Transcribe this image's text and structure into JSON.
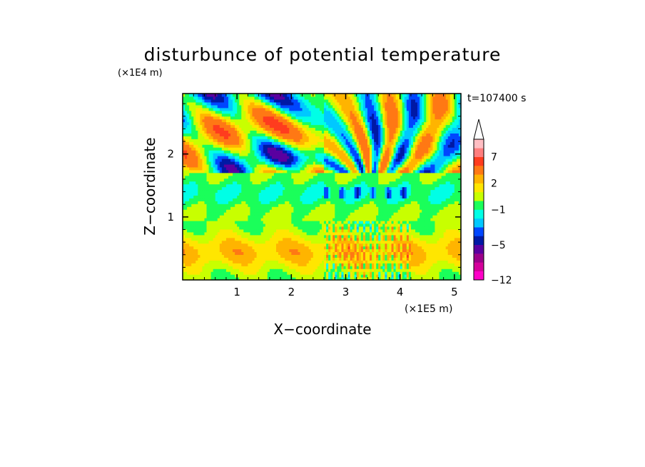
{
  "chart_data": {
    "type": "heatmap",
    "title": "disturbunce of potential temperature",
    "xlabel": "X−coordinate",
    "ylabel": "Z−coordinate",
    "x_unit": "(×1E5 m)",
    "y_unit": "(×1E4 m)",
    "time_label": "t=107400 s",
    "xlim": [
      0,
      5.12
    ],
    "ylim": [
      0,
      2.96
    ],
    "x_ticks": [
      "1",
      "2",
      "3",
      "4",
      "5"
    ],
    "x_tick_values": [
      1,
      2,
      3,
      4,
      5
    ],
    "y_ticks": [
      "1",
      "2"
    ],
    "y_tick_values": [
      1,
      2
    ],
    "colorbar": {
      "levels": [
        -12,
        -10,
        -8,
        -6,
        -5,
        -4,
        -3,
        -2,
        -1,
        0,
        1,
        2,
        3,
        5,
        7,
        9,
        11
      ],
      "colors": [
        "#ff00c8",
        "#d4009b",
        "#9b008a",
        "#5a00a0",
        "#0019a5",
        "#0046ff",
        "#00c8ff",
        "#00ffe6",
        "#1aff5a",
        "#c8ff00",
        "#ffe600",
        "#ffb400",
        "#ff7814",
        "#ff3c1e",
        "#ff7e7e",
        "#ffbec3"
      ],
      "tick_labels": [
        "7",
        "2",
        "−1",
        "−5",
        "−12"
      ],
      "tick_values": [
        7,
        2,
        -1,
        -5,
        -12
      ],
      "extend": "max"
    },
    "field_description_features": {
      "lower_layer_z": [
        0.1,
        0.8
      ],
      "lower_layer_value": 2.5,
      "cool_band_z": [
        1.15,
        1.6
      ],
      "cool_band_value": -1.5,
      "upper_wave_amplitude": 4,
      "wave_source_x": 3.4
    }
  }
}
